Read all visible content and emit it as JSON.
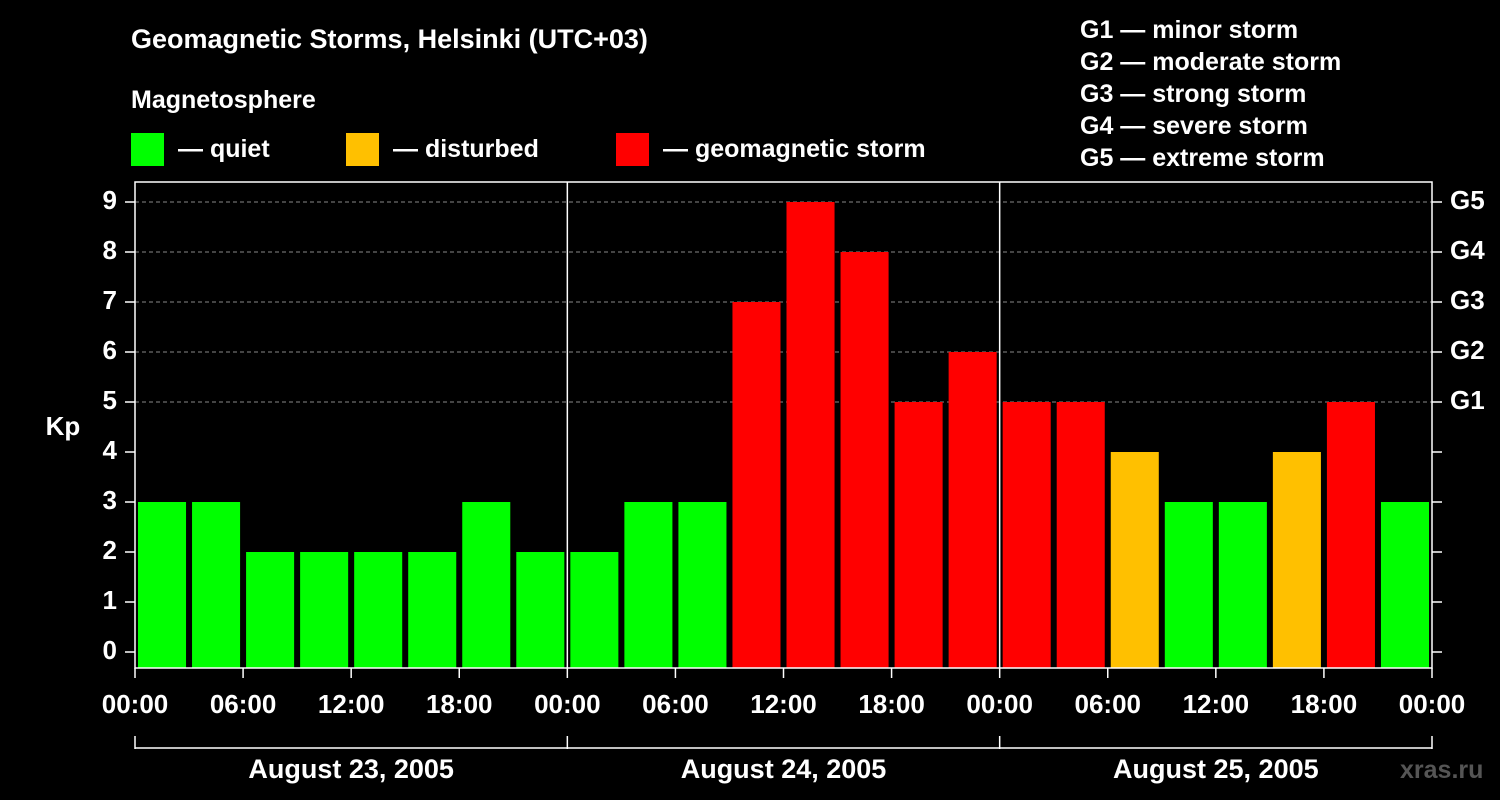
{
  "header": {
    "title": "Geomagnetic Storms, Helsinki (UTC+03)",
    "subtitle": "Magnetosphere"
  },
  "legend": [
    {
      "label": "— quiet",
      "color": "#00ff00"
    },
    {
      "label": "— disturbed",
      "color": "#ffc000"
    },
    {
      "label": "— geomagnetic storm",
      "color": "#ff0000"
    }
  ],
  "storm_levels": [
    "G1 — minor storm",
    "G2 — moderate storm",
    "G3 — strong storm",
    "G4 — severe storm",
    "G5 — extreme storm"
  ],
  "watermark": "xras.ru",
  "colors": {
    "quiet": "#00ff00",
    "disturbed": "#ffc000",
    "storm": "#ff0000"
  },
  "chart_data": {
    "type": "bar",
    "ylabel": "Kp",
    "ylim": [
      0,
      9
    ],
    "yticks": [
      0,
      1,
      2,
      3,
      4,
      5,
      6,
      7,
      8,
      9
    ],
    "right_ticks": [
      {
        "kp": 5,
        "label": "G1"
      },
      {
        "kp": 6,
        "label": "G2"
      },
      {
        "kp": 7,
        "label": "G3"
      },
      {
        "kp": 8,
        "label": "G4"
      },
      {
        "kp": 9,
        "label": "G5"
      }
    ],
    "grid": "horizontal dashed at Kp 5–9",
    "interval_hours": 3,
    "xtick_labels": [
      "00:00",
      "06:00",
      "12:00",
      "18:00",
      "00:00",
      "06:00",
      "12:00",
      "18:00",
      "00:00",
      "06:00",
      "12:00",
      "18:00",
      "00:00"
    ],
    "days": [
      "August 23, 2005",
      "August 24, 2005",
      "August 25, 2005"
    ],
    "values": [
      3,
      3,
      2,
      2,
      2,
      2,
      3,
      2,
      2,
      3,
      3,
      7,
      9,
      8,
      5,
      6,
      5,
      5,
      4,
      3,
      3,
      4,
      5,
      3
    ],
    "categories": [
      "quiet",
      "quiet",
      "quiet",
      "quiet",
      "quiet",
      "quiet",
      "quiet",
      "quiet",
      "quiet",
      "quiet",
      "quiet",
      "storm",
      "storm",
      "storm",
      "storm",
      "storm",
      "storm",
      "storm",
      "disturbed",
      "quiet",
      "quiet",
      "disturbed",
      "storm",
      "quiet"
    ]
  }
}
